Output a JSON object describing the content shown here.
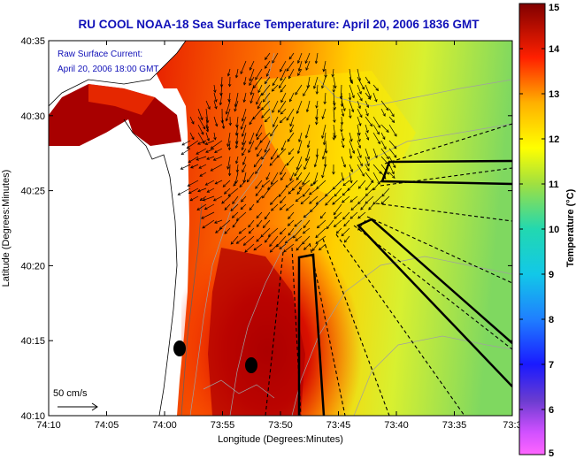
{
  "title": "RU COOL  NOAA-18  Sea Surface Temperature:  April 20, 2006 1836 GMT",
  "annotation": {
    "line1": "Raw Surface Current:",
    "line2": "April 20, 2006 18:00 GMT"
  },
  "scale": {
    "label": "50 cm/s"
  },
  "axes": {
    "xlabel": "Longitude (Degrees:Minutes)",
    "ylabel": "Latitude (Degrees:Minutes)",
    "xticks": [
      "74:10",
      "74:05",
      "74:00",
      "73:55",
      "73:50",
      "73:45",
      "73:40",
      "73:35",
      "73:3"
    ],
    "yticks": [
      "40:35",
      "40:30",
      "40:25",
      "40:20",
      "40:15",
      "40:10"
    ]
  },
  "colorbar": {
    "label": "Temperature (°C)",
    "ticks": [
      "15",
      "14",
      "13",
      "12",
      "11",
      "10",
      "9",
      "8",
      "7",
      "6",
      "5"
    ],
    "range": [
      5,
      15
    ]
  },
  "colors": {
    "title": "#1010b8",
    "land": "#ffffff",
    "water_warm": "#a00000",
    "water_cool": "#7fd860"
  }
}
